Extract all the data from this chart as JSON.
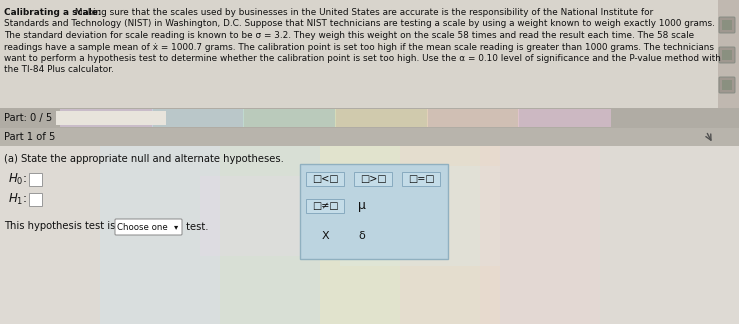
{
  "fig_w": 7.39,
  "fig_h": 3.24,
  "dpi": 100,
  "bg_color": "#ccc8c0",
  "top_bg": "#d8d4cc",
  "right_panel_color": "#c0b8b0",
  "part_bar_color": "#b0aca4",
  "part1_bar_color": "#b8b4ac",
  "content_bg": "#dedad4",
  "popup_bg": "#bcd4e0",
  "popup_border": "#90b0c0",
  "btn_bg": "#c4dce8",
  "btn_border": "#88aabf",
  "white_box": "#ffffff",
  "white_box_border": "#999999",
  "title_bold": "Calibrating a scale:",
  "title_rest": " Making sure that the scales used by businesses in the United States are accurate is the responsibility of the National Institute for",
  "line2": "Standards and Technology (NIST) in Washington, D.C. Suppose that NIST technicians are testing a scale by using a weight known to weigh exactly 1000 grams.",
  "line3": "The standard deviation for scale reading is known to be σ = 3.2. They weigh this weight on the scale 58 times and read the result each time. The 58 scale",
  "line4": "readings have a sample mean of ẋ = 1000.7 grams. The calibration point is set too high if the mean scale reading is greater than 1000 grams. The technicians",
  "line5": "want to perform a hypothesis test to determine whether the calibration point is set too high. Use the α = 0.10 level of significance and the P-value method with",
  "line6": "the TI-84 Plus calculator.",
  "part_label": "Part: 0 / 5",
  "part1_label": "Part 1 of 5",
  "part_a_label": "(a) State the appropriate null and alternate hypotheses.",
  "popup_row1a": "□<□",
  "popup_row1b": "□>□",
  "popup_row1c": "□=□",
  "popup_row2a": "□≠□",
  "popup_row2b": "μ",
  "popup_row3a": "X",
  "popup_row3b": "δ",
  "choose_text": "This hypothesis test is a",
  "choose_btn": "Choose one",
  "test_text": " test.",
  "tc": "#111111",
  "progress_bar_color": "#e8e4dc",
  "rainbow_colors": [
    "#e8d8f0",
    "#d8e8f8",
    "#d0f0e0",
    "#f8f0c8",
    "#f8e0d0"
  ],
  "rainbow_alpha": 0.35
}
